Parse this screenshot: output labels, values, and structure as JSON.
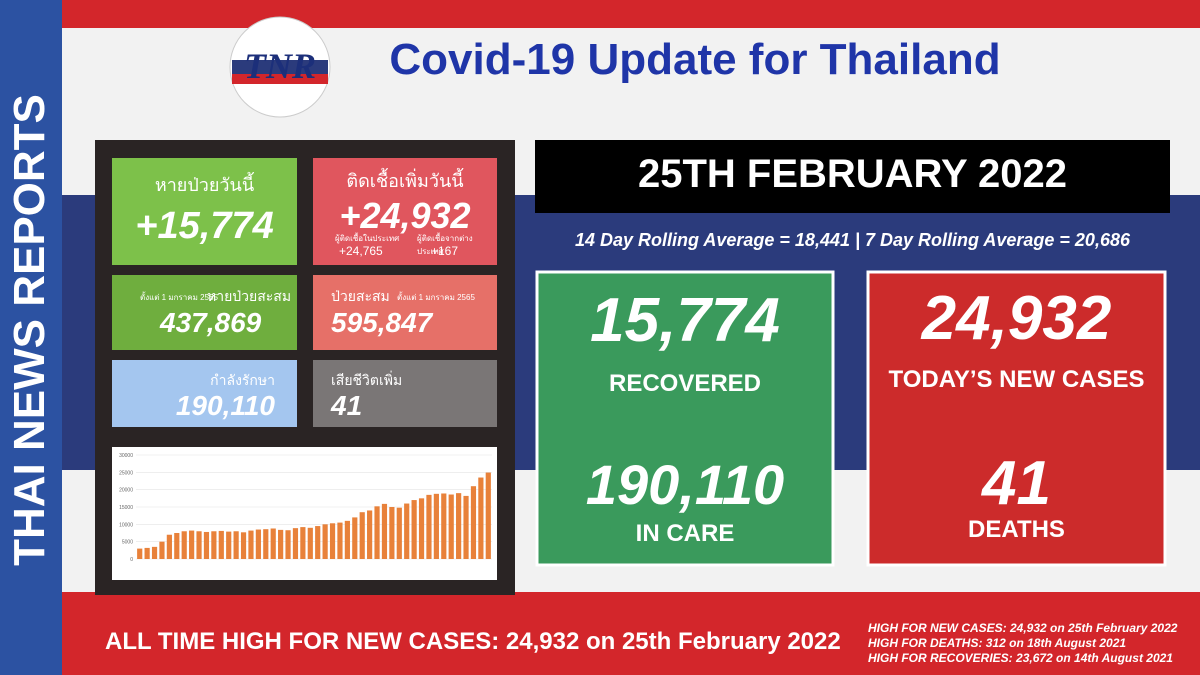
{
  "brand": {
    "side_text": "THAI NEWS REPORTS",
    "logo": "TNR"
  },
  "header": {
    "title": "Covid-19 Update for Thailand"
  },
  "tiles": {
    "recovered_today": {
      "label": "หายป่วยวันนี้",
      "value": "+15,774"
    },
    "new_cases_today": {
      "label": "ติดเชื้อเพิ่มวันนี้",
      "value": "+24,932",
      "domestic_label": "ผู้ติดเชื้อในประเทศ",
      "domestic_value": "+24,765",
      "imported_label": "ผู้ติดเชื้อจากต่างประเทศ",
      "imported_value": "+167"
    },
    "recovered_total": {
      "note": "ตั้งแต่ 1 มกราคม 2565",
      "label": "หายป่วยสะสม",
      "value": "437,869"
    },
    "cases_total": {
      "label": "ป่วยสะสม",
      "note": "ตั้งแต่ 1 มกราคม 2565",
      "value": "595,847"
    },
    "in_care": {
      "label": "กำลังรักษา",
      "value": "190,110"
    },
    "deaths": {
      "label": "เสียชีวิตเพิ่ม",
      "value": "41"
    }
  },
  "mini_chart": {
    "type": "bar",
    "color": "#e8813a",
    "ylim": [
      0,
      30000
    ],
    "yticks": [
      0,
      5000,
      10000,
      15000,
      20000,
      25000,
      30000
    ],
    "values": [
      3000,
      3200,
      3500,
      5000,
      7000,
      7500,
      8000,
      8200,
      8000,
      7800,
      8000,
      8100,
      7900,
      8000,
      7700,
      8200,
      8500,
      8600,
      8800,
      8400,
      8300,
      8900,
      9200,
      9000,
      9500,
      10000,
      10300,
      10500,
      11000,
      12000,
      13500,
      14000,
      15200,
      15900,
      15000,
      14800,
      16000,
      17000,
      17500,
      18500,
      18800,
      18900,
      18600,
      19000,
      18200,
      21000,
      23500,
      24932
    ]
  },
  "date": "25TH FEBRUARY 2022",
  "rolling": "14 Day Rolling Average = 18,441 |  7 Day Rolling Average = 20,686",
  "summary": {
    "recovered": {
      "value": "15,774",
      "label": "RECOVERED"
    },
    "in_care": {
      "value": "190,110",
      "label": "IN CARE"
    },
    "new_cases": {
      "value": "24,932",
      "label": "TODAY’S NEW CASES"
    },
    "deaths": {
      "value": "41",
      "label": "DEATHS"
    }
  },
  "footer": {
    "headline": "ALL TIME HIGH FOR NEW CASES: 24,932 on 25th February 2022",
    "notes": [
      "HIGH FOR NEW CASES: 24,932 on 25th February 2022",
      "HIGH FOR DEATHS: 312 on 18th August 2021",
      "HIGH FOR RECOVERIES: 23,672 on 14th August 2021"
    ]
  }
}
